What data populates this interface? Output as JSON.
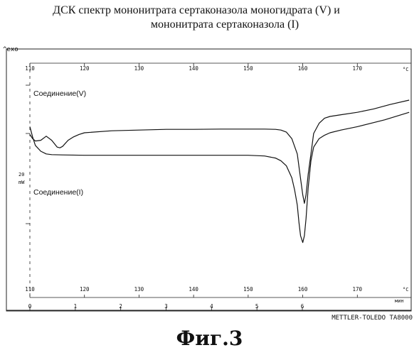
{
  "figure": {
    "title_line1": "ДСК спектр мононитрата сертаконазола моногидрата  (V) и",
    "title_line2": "мононитрата сертаконазола (I)",
    "caption": "Фиг.3"
  },
  "instrument": {
    "exo_label": "^exo",
    "scale_label": "20",
    "scale_unit": "mW",
    "footer": "METTLER-TOLEDO TA8000"
  },
  "colors": {
    "line": "#111111",
    "axis": "#222222",
    "paper": "#ffffff"
  },
  "chart_data": {
    "type": "line",
    "title": "ДСК спектр мононитрата сертаконазола моногидрата  (V) и мононитрата сертаконазола (I)",
    "xlabel": "°C",
    "ylabel": "mW",
    "x_unit_top": "°C",
    "x_unit_bottom": "°C",
    "time_unit": "мин",
    "x_ticks_top": [
      110,
      120,
      130,
      140,
      150,
      160,
      170
    ],
    "x_ticks_bottom": [
      110,
      120,
      130,
      140,
      150,
      160,
      170
    ],
    "time_ticks": [
      0,
      1,
      2,
      3,
      4,
      5,
      6
    ],
    "xlim": [
      110,
      180
    ],
    "grid": false,
    "series": [
      {
        "name": "Соединение(V)",
        "x": [
          110,
          110.5,
          111,
          112,
          113,
          114,
          115,
          115.5,
          116,
          117,
          118,
          119,
          120,
          125,
          130,
          135,
          140,
          145,
          150,
          153,
          155,
          156,
          157,
          158,
          159,
          159.5,
          160,
          160.3,
          160.6,
          161,
          161.5,
          162,
          163,
          164,
          165,
          167,
          170,
          173,
          176,
          179.5
        ],
        "y": [
          -0.03,
          -0.15,
          -0.22,
          -0.2,
          -0.08,
          -0.2,
          -0.4,
          -0.42,
          -0.38,
          -0.2,
          -0.1,
          -0.03,
          0.02,
          0.08,
          0.1,
          0.12,
          0.12,
          0.13,
          0.13,
          0.13,
          0.12,
          0.1,
          0.04,
          -0.15,
          -0.6,
          -1.2,
          -1.8,
          -2.05,
          -1.8,
          -1.2,
          -0.6,
          0.0,
          0.3,
          0.45,
          0.5,
          0.55,
          0.62,
          0.72,
          0.85,
          0.98
        ]
      },
      {
        "name": "Соединение(I)",
        "x": [
          110,
          110.5,
          111,
          112,
          113,
          114,
          116,
          120,
          125,
          130,
          135,
          140,
          145,
          150,
          153,
          155,
          156,
          157,
          158,
          158.5,
          159,
          159.3,
          159.6,
          160,
          160.3,
          160.6,
          161,
          161.5,
          162,
          163,
          164,
          165,
          167,
          170,
          175,
          179.5
        ],
        "y": [
          0.2,
          -0.1,
          -0.35,
          -0.52,
          -0.6,
          -0.62,
          -0.63,
          -0.64,
          -0.64,
          -0.64,
          -0.64,
          -0.64,
          -0.64,
          -0.64,
          -0.66,
          -0.72,
          -0.8,
          -0.95,
          -1.3,
          -1.65,
          -2.1,
          -2.6,
          -3.0,
          -3.2,
          -3.0,
          -2.5,
          -1.6,
          -0.8,
          -0.4,
          -0.15,
          -0.05,
          0.02,
          0.1,
          0.2,
          0.4,
          0.62
        ]
      }
    ],
    "annotations": [
      "Соединение(V)",
      "Соединение(I)"
    ]
  }
}
